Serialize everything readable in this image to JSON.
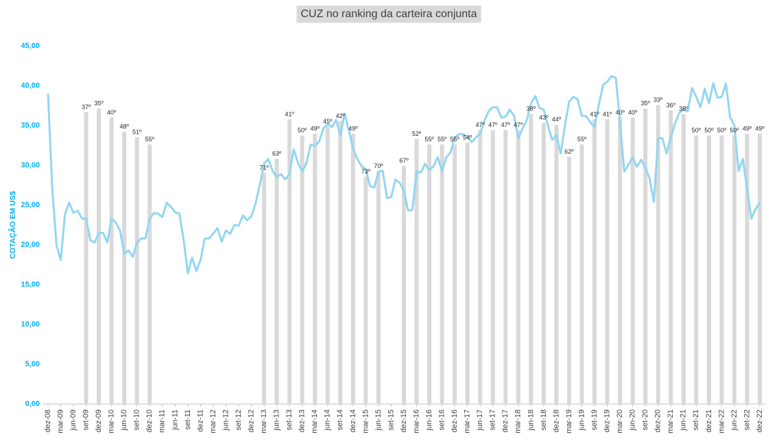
{
  "chart_data": {
    "type": "bar",
    "title": "CUZ no ranking da carteira conjunta",
    "y_label": "COTAÇÃO EM US$",
    "ylim": [
      0,
      45
    ],
    "yticks": [
      {
        "value": 0,
        "label": "0,00"
      },
      {
        "value": 5,
        "label": "5,00"
      },
      {
        "value": 10,
        "label": "10,00"
      },
      {
        "value": 15,
        "label": "15,00"
      },
      {
        "value": 20,
        "label": "20,00"
      },
      {
        "value": 25,
        "label": "25,00"
      },
      {
        "value": 30,
        "label": "30,00"
      },
      {
        "value": 35,
        "label": "35,00"
      },
      {
        "value": 40,
        "label": "40,00"
      },
      {
        "value": 45,
        "label": "45,00"
      }
    ],
    "y2lim": [
      200,
      0
    ],
    "categories": [
      "dez-08",
      null,
      null,
      "mar-09",
      null,
      null,
      "jun-09",
      null,
      null,
      "set-09",
      null,
      null,
      "dez-09",
      null,
      null,
      "mar-10",
      null,
      null,
      "jun-10",
      null,
      null,
      "set-10",
      null,
      null,
      "dez-10",
      null,
      null,
      "mar-11",
      null,
      null,
      "jun-11",
      null,
      null,
      "set-11",
      null,
      null,
      "dez-11",
      null,
      null,
      "mar-12",
      null,
      null,
      "jun-12",
      null,
      null,
      "set-12",
      null,
      null,
      "dez-12",
      null,
      null,
      "mar-13",
      null,
      null,
      "jun-13",
      null,
      null,
      "set-13",
      null,
      null,
      "dez-13",
      null,
      null,
      "mar-14",
      null,
      null,
      "jun-14",
      null,
      null,
      "set-14",
      null,
      null,
      "dez-14",
      null,
      null,
      "mar-15",
      null,
      null,
      "jun-15",
      null,
      null,
      "set-15",
      null,
      null,
      "dez-15",
      null,
      null,
      "mar-16",
      null,
      null,
      "jun-16",
      null,
      null,
      "set-16",
      null,
      null,
      "dez-16",
      null,
      null,
      "mar-17",
      null,
      null,
      "jun-17",
      null,
      null,
      "set-17",
      null,
      null,
      "dez-17",
      null,
      null,
      "mar-18",
      null,
      null,
      "jun-18",
      null,
      null,
      "set-18",
      null,
      null,
      "dez-18",
      null,
      null,
      "mar-19",
      null,
      null,
      "jun-19",
      null,
      null,
      "set-19",
      null,
      null,
      "dez-19",
      null,
      null,
      "mar-20",
      null,
      null,
      "jun-20",
      null,
      null,
      "set-20",
      null,
      null,
      "dez-20",
      null,
      null,
      "mar-21",
      null,
      null,
      "jun-21",
      null,
      null,
      "set-21",
      null,
      null,
      "dez-21",
      null,
      null,
      "mar-22",
      null,
      null,
      "jun-22",
      null,
      null,
      "set-22",
      null,
      null,
      "dez-22"
    ],
    "series": [
      {
        "type": "bar",
        "axis": "y2",
        "color": "#d9d9d9",
        "values": [
          null,
          null,
          null,
          null,
          null,
          null,
          null,
          null,
          null,
          37,
          null,
          null,
          35,
          null,
          null,
          40,
          null,
          null,
          48,
          null,
          null,
          51,
          null,
          null,
          55,
          null,
          null,
          null,
          null,
          null,
          null,
          null,
          null,
          null,
          null,
          null,
          null,
          null,
          null,
          null,
          null,
          null,
          null,
          null,
          null,
          null,
          null,
          null,
          null,
          null,
          null,
          71,
          null,
          null,
          63,
          null,
          null,
          41,
          null,
          null,
          50,
          null,
          null,
          49,
          null,
          null,
          45,
          null,
          null,
          42,
          null,
          null,
          49,
          null,
          null,
          73,
          null,
          null,
          70,
          null,
          null,
          null,
          null,
          null,
          67,
          null,
          null,
          52,
          null,
          null,
          55,
          null,
          null,
          55,
          null,
          null,
          55,
          null,
          null,
          54,
          null,
          null,
          47,
          null,
          null,
          47,
          null,
          null,
          47,
          null,
          null,
          47,
          null,
          null,
          38,
          null,
          null,
          43,
          null,
          null,
          44,
          null,
          null,
          62,
          null,
          null,
          55,
          null,
          null,
          41,
          null,
          null,
          41,
          null,
          null,
          40,
          null,
          null,
          40,
          null,
          null,
          35,
          null,
          null,
          33,
          null,
          null,
          36,
          null,
          null,
          38,
          null,
          null,
          50,
          null,
          null,
          50,
          null,
          null,
          50,
          null,
          null,
          50,
          null,
          null,
          49,
          null,
          null,
          49
        ],
        "value_labels": [
          null,
          null,
          null,
          null,
          null,
          null,
          null,
          null,
          null,
          "37º",
          null,
          null,
          "35º",
          null,
          null,
          "40º",
          null,
          null,
          "48º",
          null,
          null,
          "51º",
          null,
          null,
          "55º",
          null,
          null,
          null,
          null,
          null,
          null,
          null,
          null,
          null,
          null,
          null,
          null,
          null,
          null,
          null,
          null,
          null,
          null,
          null,
          null,
          null,
          null,
          null,
          null,
          null,
          null,
          "71º",
          null,
          null,
          "63º",
          null,
          null,
          "41º",
          null,
          null,
          "50º",
          null,
          null,
          "49º",
          null,
          null,
          "45º",
          null,
          null,
          "42º",
          null,
          null,
          "49º",
          null,
          null,
          "73º",
          null,
          null,
          "70º",
          null,
          null,
          null,
          null,
          null,
          "67º",
          null,
          null,
          "52º",
          null,
          null,
          "55º",
          null,
          null,
          "55º",
          null,
          null,
          "55º",
          null,
          null,
          "54º",
          null,
          null,
          "47º",
          null,
          null,
          "47º",
          null,
          null,
          "47º",
          null,
          null,
          "47º",
          null,
          null,
          "38º",
          null,
          null,
          "43º",
          null,
          null,
          "44º",
          null,
          null,
          "62º",
          null,
          null,
          "55º",
          null,
          null,
          "41º",
          null,
          null,
          "41º",
          null,
          null,
          "40º",
          null,
          null,
          "40º",
          null,
          null,
          "35º",
          null,
          null,
          "33º",
          null,
          null,
          "36º",
          null,
          null,
          "38º",
          null,
          null,
          "50º",
          null,
          null,
          "50º",
          null,
          null,
          "50º",
          null,
          null,
          "50º",
          null,
          null,
          "49º",
          null,
          null,
          "49º"
        ]
      },
      {
        "type": "line",
        "axis": "y",
        "color": "#93d6f1",
        "values": [
          39.0,
          27.1,
          20.0,
          18.1,
          23.8,
          25.3,
          24.0,
          24.3,
          23.3,
          23.3,
          20.6,
          20.3,
          21.5,
          21.5,
          20.3,
          23.3,
          22.8,
          21.8,
          18.9,
          19.3,
          18.5,
          20.3,
          20.8,
          20.8,
          23.3,
          24.0,
          23.9,
          23.5,
          25.3,
          24.8,
          24.1,
          23.9,
          20.7,
          16.4,
          18.4,
          16.7,
          18.1,
          20.8,
          20.8,
          21.4,
          22.1,
          20.4,
          21.8,
          21.4,
          22.5,
          22.4,
          23.7,
          23.1,
          23.6,
          25.2,
          27.6,
          30.2,
          30.8,
          29.3,
          28.5,
          28.9,
          28.2,
          28.9,
          32.0,
          30.3,
          29.2,
          30.3,
          32.6,
          32.4,
          33.0,
          34.6,
          35.2,
          34.8,
          35.7,
          33.8,
          36.5,
          34.4,
          32.1,
          30.8,
          29.9,
          29.5,
          27.4,
          27.2,
          29.2,
          29.3,
          25.9,
          26.0,
          28.2,
          27.8,
          26.8,
          24.3,
          24.4,
          29.2,
          29.1,
          30.2,
          29.4,
          29.9,
          31.0,
          29.3,
          31.0,
          31.6,
          33.5,
          33.9,
          33.9,
          33.6,
          32.9,
          33.5,
          34.0,
          35.6,
          36.8,
          37.3,
          37.3,
          36.0,
          36.1,
          37.0,
          36.2,
          33.4,
          34.6,
          35.7,
          37.8,
          38.7,
          37.2,
          37.0,
          35.0,
          33.2,
          33.8,
          31.5,
          35.0,
          38.0,
          38.6,
          38.3,
          36.2,
          36.2,
          35.4,
          34.8,
          37.6,
          40.1,
          40.5,
          41.2,
          41.0,
          35.5,
          29.2,
          30.1,
          31.0,
          29.8,
          30.7,
          29.7,
          28.3,
          25.4,
          33.4,
          33.4,
          31.5,
          33.5,
          35.3,
          36.6,
          37.0,
          36.8,
          39.7,
          38.6,
          37.3,
          39.6,
          37.8,
          40.3,
          38.5,
          38.6,
          40.3,
          36.0,
          35.0,
          29.3,
          30.8,
          27.0,
          23.3,
          24.5,
          25.3
        ]
      }
    ]
  }
}
